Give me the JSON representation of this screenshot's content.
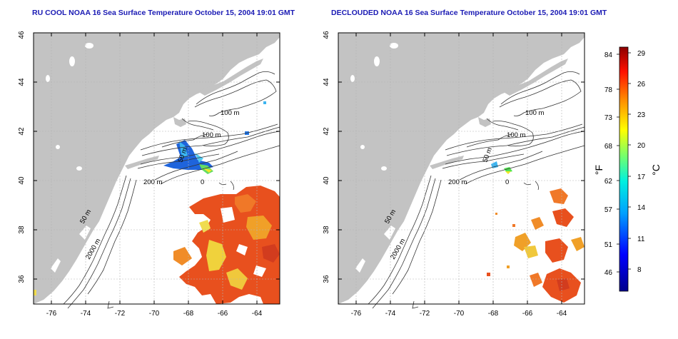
{
  "left_panel": {
    "title": "RU COOL NOAA 16 Sea Surface Temperature October 15, 2004 19:01 GMT",
    "contour_labels": [
      "100 m",
      "100 m",
      "50 m",
      "200 m",
      "0",
      "50 m",
      "2000 m"
    ]
  },
  "right_panel": {
    "title": "DECLOUDED NOAA 16 Sea Surface Temperature October 15, 2004 19:01 GMT",
    "contour_labels": [
      "100 m",
      "100 m",
      "50 m",
      "200 m",
      "0",
      "50 m",
      "2000 m"
    ]
  },
  "axes": {
    "x_ticks": [
      "-76",
      "-74",
      "-72",
      "-70",
      "-68",
      "-66",
      "-64"
    ],
    "y_ticks": [
      "36",
      "38",
      "40",
      "42",
      "44",
      "46"
    ]
  },
  "colorbar": {
    "fahrenheit_label": "°F",
    "celsius_label": "°C",
    "fahrenheit_ticks": [
      "84",
      "78",
      "73",
      "68",
      "62",
      "57",
      "51",
      "46"
    ],
    "celsius_ticks": [
      "29",
      "26",
      "23",
      "20",
      "17",
      "14",
      "11",
      "8"
    ]
  },
  "colors": {
    "land": "#c3c3c3",
    "title": "#1a1ab4",
    "warm": "#e8501e",
    "cool": "#1e64dc"
  }
}
